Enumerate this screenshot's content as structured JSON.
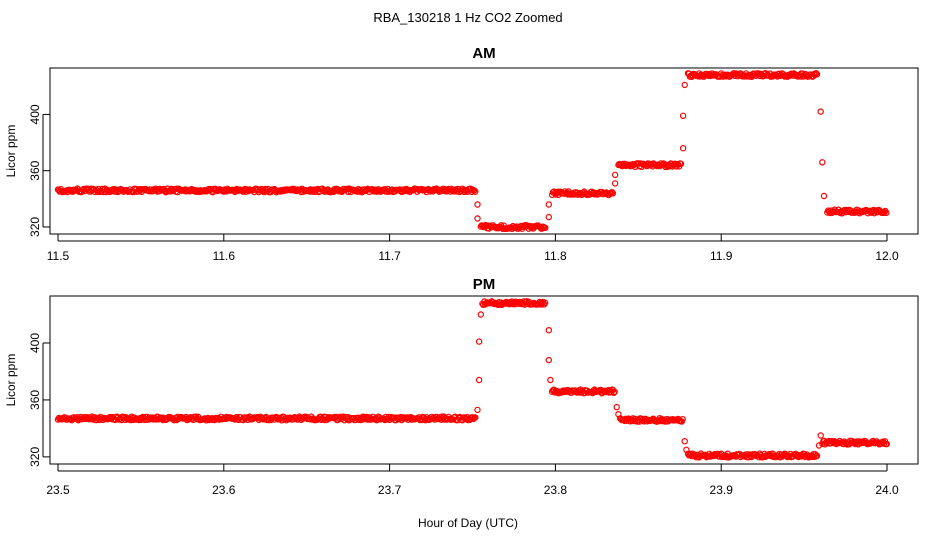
{
  "figure": {
    "title": "RBA_130218  1 Hz CO2 Zoomed",
    "xlabel": "Hour of Day (UTC)"
  },
  "chart_data": [
    {
      "type": "scatter",
      "title": "AM",
      "xlabel": "",
      "ylabel": "Licor ppm",
      "xlim": [
        11.5,
        12.0
      ],
      "ylim": [
        315,
        433
      ],
      "xticks": [
        "11.5",
        "11.6",
        "11.7",
        "11.8",
        "11.9",
        "12.0"
      ],
      "yticks": [
        "320",
        "360",
        "400"
      ],
      "marker_color": "#ff0000",
      "series": [
        {
          "name": "",
          "segments": [
            {
              "x_start": 11.5,
              "x_end": 11.752,
              "y": 346
            },
            {
              "x_start": 11.755,
              "x_end": 11.794,
              "y": 320
            },
            {
              "x_start": 11.798,
              "x_end": 11.835,
              "y": 344
            },
            {
              "x_start": 11.838,
              "x_end": 11.876,
              "y": 364
            },
            {
              "x_start": 11.88,
              "x_end": 11.958,
              "y": 428
            },
            {
              "x_start": 11.964,
              "x_end": 12.0,
              "y": 331
            }
          ],
          "transitions": [
            {
              "x": 11.753,
              "y": 336
            },
            {
              "x": 11.753,
              "y": 326
            },
            {
              "x": 11.796,
              "y": 327
            },
            {
              "x": 11.796,
              "y": 336
            },
            {
              "x": 11.836,
              "y": 351
            },
            {
              "x": 11.836,
              "y": 357
            },
            {
              "x": 11.877,
              "y": 376
            },
            {
              "x": 11.877,
              "y": 399
            },
            {
              "x": 11.878,
              "y": 421
            },
            {
              "x": 11.96,
              "y": 402
            },
            {
              "x": 11.961,
              "y": 366
            },
            {
              "x": 11.962,
              "y": 342
            }
          ]
        }
      ]
    },
    {
      "type": "scatter",
      "title": "PM",
      "xlabel": "",
      "ylabel": "Licor ppm",
      "xlim": [
        23.5,
        24.0
      ],
      "ylim": [
        315,
        433
      ],
      "xticks": [
        "23.5",
        "23.6",
        "23.7",
        "23.8",
        "23.9",
        "24.0"
      ],
      "yticks": [
        "320",
        "360",
        "400"
      ],
      "marker_color": "#ff0000",
      "series": [
        {
          "name": "",
          "segments": [
            {
              "x_start": 23.5,
              "x_end": 23.752,
              "y": 347
            },
            {
              "x_start": 23.756,
              "x_end": 23.794,
              "y": 428
            },
            {
              "x_start": 23.798,
              "x_end": 23.836,
              "y": 366
            },
            {
              "x_start": 23.839,
              "x_end": 23.877,
              "y": 346
            },
            {
              "x_start": 23.88,
              "x_end": 23.958,
              "y": 321
            },
            {
              "x_start": 23.961,
              "x_end": 24.0,
              "y": 330
            }
          ],
          "transitions": [
            {
              "x": 23.753,
              "y": 353
            },
            {
              "x": 23.754,
              "y": 374
            },
            {
              "x": 23.754,
              "y": 401
            },
            {
              "x": 23.755,
              "y": 420
            },
            {
              "x": 23.796,
              "y": 409
            },
            {
              "x": 23.796,
              "y": 388
            },
            {
              "x": 23.797,
              "y": 374
            },
            {
              "x": 23.837,
              "y": 355
            },
            {
              "x": 23.838,
              "y": 350
            },
            {
              "x": 23.878,
              "y": 331
            },
            {
              "x": 23.879,
              "y": 325
            },
            {
              "x": 23.959,
              "y": 328
            },
            {
              "x": 23.96,
              "y": 335
            }
          ]
        }
      ]
    }
  ]
}
